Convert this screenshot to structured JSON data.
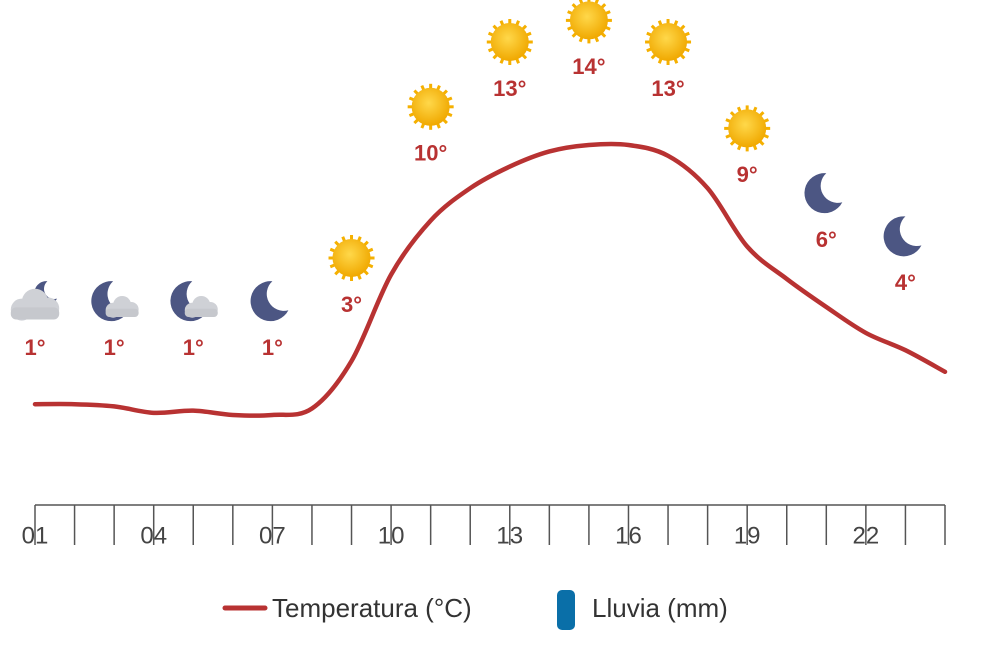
{
  "chart_data": {
    "type": "line",
    "categories": [
      "01",
      null,
      null,
      "04",
      null,
      null,
      "07",
      null,
      null,
      "10",
      null,
      null,
      "13",
      null,
      null,
      "16",
      null,
      null,
      "19",
      null,
      null,
      "22",
      null,
      null
    ],
    "series": [
      {
        "name": "Temperatura (°C)",
        "color": "#b83232",
        "values": [
          1,
          1,
          0.9,
          0.6,
          0.7,
          0.5,
          0.5,
          0.8,
          3,
          7,
          9.5,
          11,
          12,
          12.7,
          13,
          13,
          12.5,
          11,
          8.3,
          6.8,
          5.5,
          4.3,
          3.5,
          2.5
        ]
      }
    ],
    "legend": [
      {
        "name": "Temperatura (°C)",
        "color": "#b83232"
      },
      {
        "name": "Lluvia (mm)",
        "color": "#0a6fa8"
      }
    ],
    "forecast_values": [
      1,
      1,
      1,
      1,
      3,
      10,
      13,
      14,
      13,
      9,
      6,
      4
    ],
    "forecast_labels": [
      "1°",
      "1°",
      "1°",
      "1°",
      "3°",
      "10°",
      "13°",
      "14°",
      "13°",
      "9°",
      "6°",
      "4°"
    ],
    "conditions": [
      "cloudy-night",
      "night-cloud",
      "night-cloud",
      "night",
      "sun",
      "sun",
      "sun",
      "sun",
      "sun",
      "sun",
      "night",
      "night"
    ]
  }
}
